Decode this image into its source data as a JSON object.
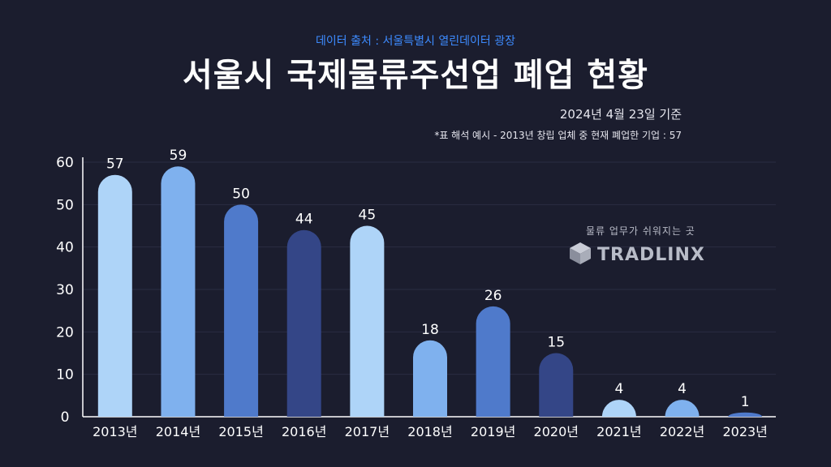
{
  "header": {
    "source": "데이터 출처 : 서울특별시 열린데이터 광장",
    "title": "서울시 국제물류주선업 폐업 현황",
    "date": "2024년 4월 23일 기준",
    "note": "*표 해석 예시 - 2013년 창립 업체 중 현재 폐업한 기업 : 57"
  },
  "brand": {
    "tagline": "물류 업무가 쉬워지는 곳",
    "name": "TRADLINX",
    "logo_icon": "cube-logo-icon"
  },
  "chart_data": {
    "type": "bar",
    "title": "서울시 국제물류주선업 폐업 현황",
    "categories": [
      "2013년",
      "2014년",
      "2015년",
      "2016년",
      "2017년",
      "2018년",
      "2019년",
      "2020년",
      "2021년",
      "2022년",
      "2023년"
    ],
    "values": [
      57,
      59,
      50,
      44,
      45,
      18,
      26,
      15,
      4,
      4,
      1
    ],
    "bar_colors": [
      "#aed4f8",
      "#7fb1ee",
      "#4f7acb",
      "#344687",
      "#aed4f8",
      "#7fb1ee",
      "#4f7acb",
      "#344687",
      "#aed4f8",
      "#7fb1ee",
      "#4f7acb"
    ],
    "yticks": [
      0,
      10,
      20,
      30,
      40,
      50,
      60
    ],
    "ylim": [
      0,
      60
    ],
    "grid": true,
    "xlabel": "",
    "ylabel": ""
  }
}
